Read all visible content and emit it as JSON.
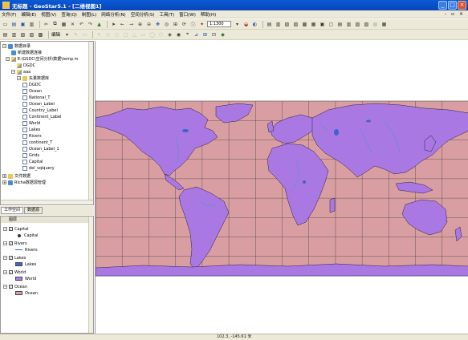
{
  "window": {
    "title": "无标题 - GeoStar5.1 - [二维视图1]"
  },
  "menu": [
    "文件(F)",
    "编辑(E)",
    "视图(V)",
    "查询(Q)",
    "制图(L)",
    "网络分析(N)",
    "空间分析(S)",
    "工具(T)",
    "窗口(W)",
    "帮助(H)"
  ],
  "toolbar": {
    "scale": "1:1300",
    "label": "编辑"
  },
  "catalog": {
    "root": "数据目录",
    "new_source": "新建数据连接",
    "path": "E:\\GSDC\\空间分析\\数据\\temp.m",
    "dc1": "DGDC",
    "sub": "aaa",
    "vector": "矢量数据库",
    "layers": [
      "DGDC",
      "Ocean",
      "National_T",
      "Ocean_Label",
      "Country_Label",
      "Continent_Label",
      "World",
      "Lakes",
      "Rivers",
      "continent_T",
      "Ocean_Label_1",
      "Grids",
      "Capital",
      "del_sqlquery"
    ],
    "files": "文件数据",
    "service": "Richa数据源管理"
  },
  "tabs": {
    "workspace": "工作空间",
    "data": "数据源"
  },
  "legend": {
    "header": "图层",
    "items": [
      {
        "name": "Capital",
        "symbol": "point",
        "sublabel": "Capital"
      },
      {
        "name": "Rivers",
        "symbol": "line",
        "sublabel": "Rivers"
      },
      {
        "name": "Lakes",
        "symbol": "fill",
        "color": "#3e63c9",
        "sublabel": "Lakes"
      },
      {
        "name": "World",
        "symbol": "fill",
        "color": "#b07be6",
        "sublabel": "World"
      },
      {
        "name": "Ocean",
        "symbol": "fill",
        "color": "#d9a0a6",
        "sublabel": "Ocean"
      }
    ]
  },
  "map": {
    "ocean_color": "#d99ea1",
    "land_color": "#a978e2",
    "water_color": "#3e63c9"
  },
  "status": {
    "coords": "102.3, -145.61 米"
  }
}
